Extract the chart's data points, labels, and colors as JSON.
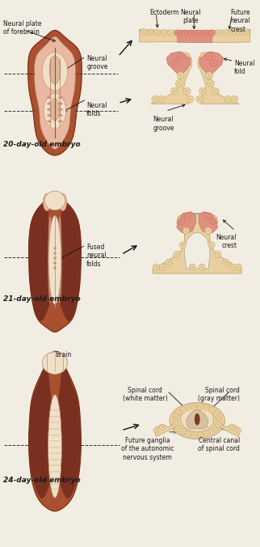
{
  "bg_color": "#f2ede3",
  "label_color": "#1a1a1a",
  "arrow_color": "#111111",
  "dashed_color": "#333333",
  "embryo1_label": "20-day-old embryo",
  "embryo2_label": "21-day-old embryo",
  "embryo3_label": "24-day-old embryo",
  "skin_brown": "#a85030",
  "skin_mid_brown": "#c07050",
  "skin_pink": "#e8b8a0",
  "skin_cream": "#f0e0c8",
  "neural_dark_brown": "#6a2810",
  "fold_pink": "#e8a898",
  "cell_tan": "#e8d0a0",
  "cell_pink": "#e09080",
  "cell_dark_pink": "#c87060",
  "cell_tan_dark": "#c8a870",
  "teal": "#90b8b0",
  "lfs": 5.5,
  "tfs": 6.5,
  "lfs_bold": 6.0
}
